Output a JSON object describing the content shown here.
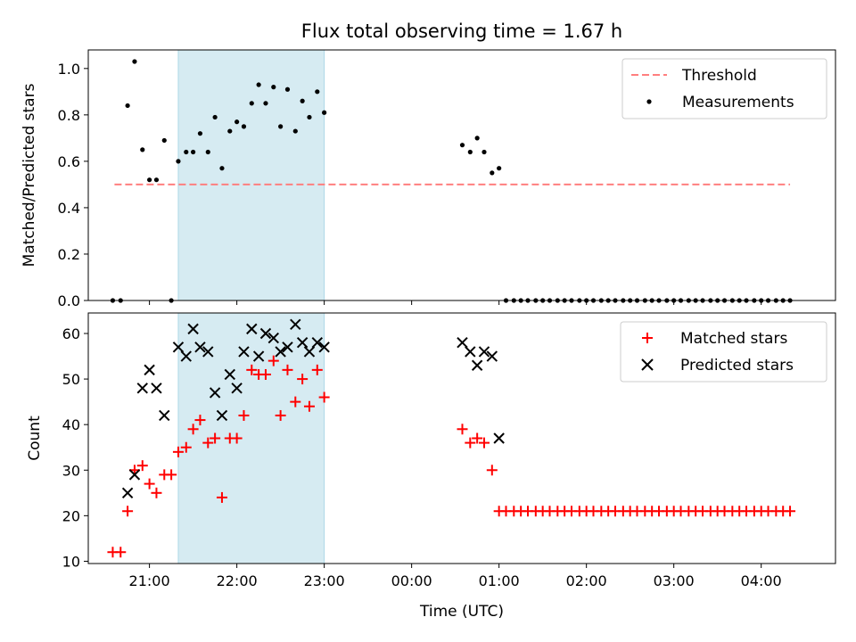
{
  "chart_data": {
    "title": "Flux total observing time = 1.67 h",
    "xlabel": "Time (UTC)",
    "x_unit": "hours (UTC); values 24 and above are the next day",
    "xlim": [
      20.3,
      28.85
    ],
    "x_ticks": [
      {
        "label": "21:00",
        "value": 21
      },
      {
        "label": "22:00",
        "value": 22
      },
      {
        "label": "23:00",
        "value": 23
      },
      {
        "label": "00:00",
        "value": 24
      },
      {
        "label": "01:00",
        "value": 25
      },
      {
        "label": "02:00",
        "value": 26
      },
      {
        "label": "03:00",
        "value": 27
      },
      {
        "label": "04:00",
        "value": 28
      }
    ],
    "shaded_interval": {
      "x": [
        21.33,
        23.0
      ],
      "color": "#add8e6"
    },
    "panels": [
      {
        "type": "scatter",
        "ylabel": "Matched/Predicted stars",
        "ylim": [
          0.0,
          1.08
        ],
        "y_ticks": [
          "0.0",
          "0.2",
          "0.4",
          "0.6",
          "0.8",
          "1.0"
        ],
        "y_tick_values": [
          0.0,
          0.2,
          0.4,
          0.6,
          0.8,
          1.0
        ],
        "legend": "top-right",
        "series": [
          {
            "name": "Threshold",
            "kind": "dashed-line",
            "color": "#ff7f7f",
            "x": [
              20.6,
              28.33
            ],
            "y": [
              0.5,
              0.5
            ]
          },
          {
            "name": "Measurements",
            "kind": "dot",
            "color": "#000000",
            "points": [
              [
                20.58,
                0.0
              ],
              [
                20.67,
                0.0
              ],
              [
                20.75,
                0.84
              ],
              [
                20.83,
                1.03
              ],
              [
                20.92,
                0.65
              ],
              [
                21.0,
                0.52
              ],
              [
                21.08,
                0.52
              ],
              [
                21.17,
                0.69
              ],
              [
                21.25,
                0.0
              ],
              [
                21.33,
                0.6
              ],
              [
                21.42,
                0.64
              ],
              [
                21.5,
                0.64
              ],
              [
                21.58,
                0.72
              ],
              [
                21.67,
                0.64
              ],
              [
                21.75,
                0.79
              ],
              [
                21.83,
                0.57
              ],
              [
                21.92,
                0.73
              ],
              [
                22.0,
                0.77
              ],
              [
                22.08,
                0.75
              ],
              [
                22.17,
                0.85
              ],
              [
                22.25,
                0.93
              ],
              [
                22.33,
                0.85
              ],
              [
                22.42,
                0.92
              ],
              [
                22.5,
                0.75
              ],
              [
                22.58,
                0.91
              ],
              [
                22.67,
                0.73
              ],
              [
                22.75,
                0.86
              ],
              [
                22.83,
                0.79
              ],
              [
                22.92,
                0.9
              ],
              [
                23.0,
                0.81
              ],
              [
                24.58,
                0.67
              ],
              [
                24.67,
                0.64
              ],
              [
                24.75,
                0.7
              ],
              [
                24.83,
                0.64
              ],
              [
                24.92,
                0.55
              ],
              [
                25.0,
                0.57
              ],
              [
                25.08,
                0.0
              ],
              [
                25.17,
                0.0
              ],
              [
                25.25,
                0.0
              ],
              [
                25.33,
                0.0
              ],
              [
                25.42,
                0.0
              ],
              [
                25.5,
                0.0
              ],
              [
                25.58,
                0.0
              ],
              [
                25.67,
                0.0
              ],
              [
                25.75,
                0.0
              ],
              [
                25.83,
                0.0
              ],
              [
                25.92,
                0.0
              ],
              [
                26.0,
                0.0
              ],
              [
                26.08,
                0.0
              ],
              [
                26.17,
                0.0
              ],
              [
                26.25,
                0.0
              ],
              [
                26.33,
                0.0
              ],
              [
                26.42,
                0.0
              ],
              [
                26.5,
                0.0
              ],
              [
                26.58,
                0.0
              ],
              [
                26.67,
                0.0
              ],
              [
                26.75,
                0.0
              ],
              [
                26.83,
                0.0
              ],
              [
                26.92,
                0.0
              ],
              [
                27.0,
                0.0
              ],
              [
                27.08,
                0.0
              ],
              [
                27.17,
                0.0
              ],
              [
                27.25,
                0.0
              ],
              [
                27.33,
                0.0
              ],
              [
                27.42,
                0.0
              ],
              [
                27.5,
                0.0
              ],
              [
                27.58,
                0.0
              ],
              [
                27.67,
                0.0
              ],
              [
                27.75,
                0.0
              ],
              [
                27.83,
                0.0
              ],
              [
                27.92,
                0.0
              ],
              [
                28.0,
                0.0
              ],
              [
                28.08,
                0.0
              ],
              [
                28.17,
                0.0
              ],
              [
                28.25,
                0.0
              ],
              [
                28.33,
                0.0
              ]
            ]
          }
        ]
      },
      {
        "type": "scatter",
        "ylabel": "Count",
        "ylim": [
          9.5,
          64.5
        ],
        "y_ticks": [
          "10",
          "20",
          "30",
          "40",
          "50",
          "60"
        ],
        "y_tick_values": [
          10,
          20,
          30,
          40,
          50,
          60
        ],
        "legend": "top-right",
        "series": [
          {
            "name": "Matched stars",
            "kind": "plus",
            "color": "#ff0000",
            "points": [
              [
                20.58,
                12
              ],
              [
                20.67,
                12
              ],
              [
                20.75,
                21
              ],
              [
                20.83,
                30
              ],
              [
                20.92,
                31
              ],
              [
                21.0,
                27
              ],
              [
                21.08,
                25
              ],
              [
                21.17,
                29
              ],
              [
                21.25,
                29
              ],
              [
                21.33,
                34
              ],
              [
                21.42,
                35
              ],
              [
                21.5,
                39
              ],
              [
                21.58,
                41
              ],
              [
                21.67,
                36
              ],
              [
                21.75,
                37
              ],
              [
                21.83,
                24
              ],
              [
                21.92,
                37
              ],
              [
                22.0,
                37
              ],
              [
                22.08,
                42
              ],
              [
                22.17,
                52
              ],
              [
                22.25,
                51
              ],
              [
                22.33,
                51
              ],
              [
                22.42,
                54
              ],
              [
                22.5,
                42
              ],
              [
                22.58,
                52
              ],
              [
                22.67,
                45
              ],
              [
                22.75,
                50
              ],
              [
                22.83,
                44
              ],
              [
                22.92,
                52
              ],
              [
                23.0,
                46
              ],
              [
                24.58,
                39
              ],
              [
                24.67,
                36
              ],
              [
                24.75,
                37
              ],
              [
                24.83,
                36
              ],
              [
                24.92,
                30
              ],
              [
                25.0,
                21
              ],
              [
                25.08,
                21
              ],
              [
                25.17,
                21
              ],
              [
                25.25,
                21
              ],
              [
                25.33,
                21
              ],
              [
                25.42,
                21
              ],
              [
                25.5,
                21
              ],
              [
                25.58,
                21
              ],
              [
                25.67,
                21
              ],
              [
                25.75,
                21
              ],
              [
                25.83,
                21
              ],
              [
                25.92,
                21
              ],
              [
                26.0,
                21
              ],
              [
                26.08,
                21
              ],
              [
                26.17,
                21
              ],
              [
                26.25,
                21
              ],
              [
                26.33,
                21
              ],
              [
                26.42,
                21
              ],
              [
                26.5,
                21
              ],
              [
                26.58,
                21
              ],
              [
                26.67,
                21
              ],
              [
                26.75,
                21
              ],
              [
                26.83,
                21
              ],
              [
                26.92,
                21
              ],
              [
                27.0,
                21
              ],
              [
                27.08,
                21
              ],
              [
                27.17,
                21
              ],
              [
                27.25,
                21
              ],
              [
                27.33,
                21
              ],
              [
                27.42,
                21
              ],
              [
                27.5,
                21
              ],
              [
                27.58,
                21
              ],
              [
                27.67,
                21
              ],
              [
                27.75,
                21
              ],
              [
                27.83,
                21
              ],
              [
                27.92,
                21
              ],
              [
                28.0,
                21
              ],
              [
                28.08,
                21
              ],
              [
                28.17,
                21
              ],
              [
                28.25,
                21
              ],
              [
                28.33,
                21
              ]
            ]
          },
          {
            "name": "Predicted stars",
            "kind": "x",
            "color": "#000000",
            "points": [
              [
                20.75,
                25
              ],
              [
                20.83,
                29
              ],
              [
                20.92,
                48
              ],
              [
                21.0,
                52
              ],
              [
                21.08,
                48
              ],
              [
                21.17,
                42
              ],
              [
                21.33,
                57
              ],
              [
                21.42,
                55
              ],
              [
                21.5,
                61
              ],
              [
                21.58,
                57
              ],
              [
                21.67,
                56
              ],
              [
                21.75,
                47
              ],
              [
                21.83,
                42
              ],
              [
                21.92,
                51
              ],
              [
                22.0,
                48
              ],
              [
                22.08,
                56
              ],
              [
                22.17,
                61
              ],
              [
                22.25,
                55
              ],
              [
                22.33,
                60
              ],
              [
                22.42,
                59
              ],
              [
                22.5,
                56
              ],
              [
                22.58,
                57
              ],
              [
                22.67,
                62
              ],
              [
                22.75,
                58
              ],
              [
                22.83,
                56
              ],
              [
                22.92,
                58
              ],
              [
                23.0,
                57
              ],
              [
                24.58,
                58
              ],
              [
                24.67,
                56
              ],
              [
                24.75,
                53
              ],
              [
                24.83,
                56
              ],
              [
                24.92,
                55
              ],
              [
                25.0,
                37
              ]
            ]
          }
        ]
      }
    ]
  }
}
